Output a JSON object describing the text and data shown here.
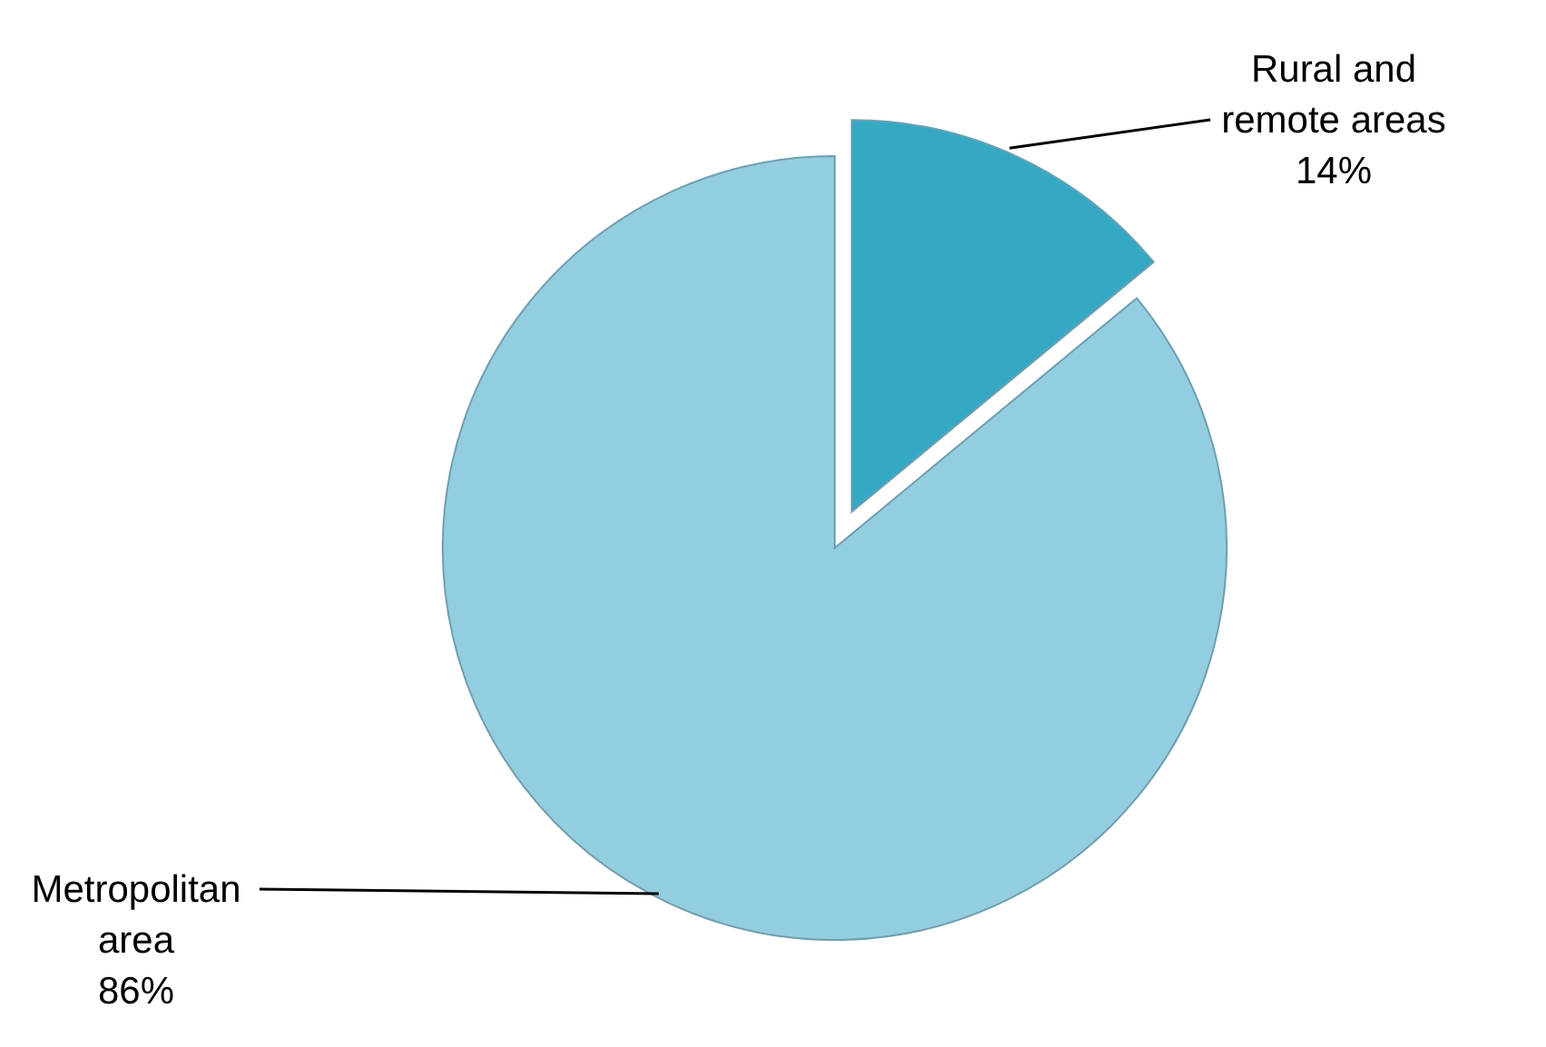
{
  "chart_data": {
    "type": "pie",
    "categories": [
      "Rural and remote areas",
      "Metropolitan area"
    ],
    "values": [
      14,
      86
    ],
    "colors": [
      "#35a9c4",
      "#93cde0"
    ],
    "value_labels": [
      "14%",
      "86%"
    ],
    "legend": false
  }
}
